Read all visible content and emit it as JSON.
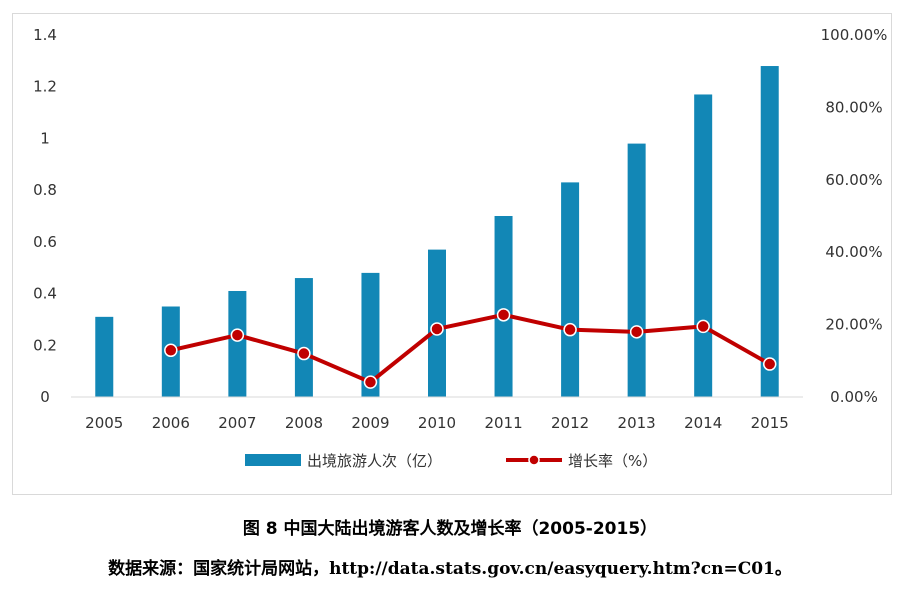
{
  "chart_data": {
    "type": "bar",
    "categories": [
      "2005",
      "2006",
      "2007",
      "2008",
      "2009",
      "2010",
      "2011",
      "2012",
      "2013",
      "2014",
      "2015"
    ],
    "series": [
      {
        "name": "出境旅游人次（亿）",
        "type": "bar",
        "axis": "left",
        "color": "#1287b6",
        "values": [
          0.31,
          0.35,
          0.41,
          0.46,
          0.48,
          0.57,
          0.7,
          0.83,
          0.98,
          1.17,
          1.28
        ]
      },
      {
        "name": "增长率（%）",
        "type": "line",
        "axis": "right",
        "color": "#c00000",
        "values": [
          null,
          12.9,
          17.1,
          12.0,
          4.1,
          18.8,
          22.7,
          18.6,
          18.0,
          19.5,
          9.1
        ]
      }
    ],
    "y_left": {
      "min": 0,
      "max": 1.4,
      "ticks": [
        "0",
        "0.2",
        "0.4",
        "0.6",
        "0.8",
        "1",
        "1.2",
        "1.4"
      ]
    },
    "y_right": {
      "min": 0,
      "max": 100,
      "ticks": [
        "0.00%",
        "20.00%",
        "40.00%",
        "60.00%",
        "80.00%",
        "100.00%"
      ]
    },
    "legend_position": "bottom",
    "grid": false
  },
  "caption": {
    "title": "图 8  中国大陆出境游客人数及增长率（2005-2015）",
    "source_prefix": "数据来源：国家统计局网站，",
    "source_url": "http://data.stats.gov.cn/easyquery.htm?cn=C01",
    "source_suffix": "。"
  }
}
